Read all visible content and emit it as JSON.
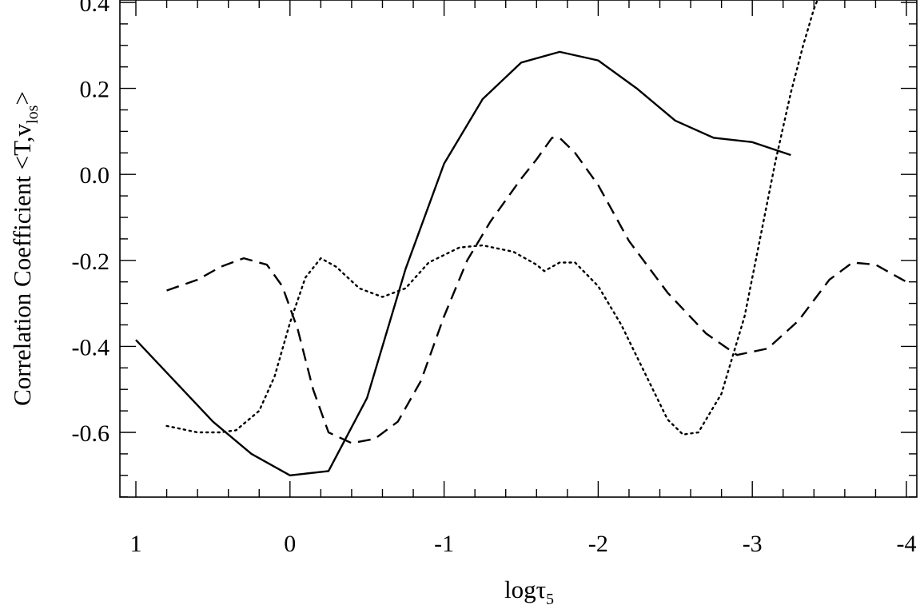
{
  "chart_data": {
    "type": "line",
    "xlabel": "logτ",
    "xlabel_subscript": "5",
    "ylabel": "Correlation Coefficient <T,v",
    "ylabel_subscript": "los",
    "ylabel_suffix": ">",
    "xlim": [
      1.0,
      -4.0
    ],
    "ylim": [
      -0.75,
      0.4
    ],
    "xticks": [
      1,
      0,
      -1,
      -2,
      -3,
      -4
    ],
    "xtick_labels": [
      "1",
      "0",
      "-1",
      "-2",
      "-3",
      "-4"
    ],
    "yticks": [
      0.4,
      0.2,
      0.0,
      -0.2,
      -0.4,
      -0.6
    ],
    "ytick_labels": [
      "0.4",
      "0.2",
      "0.0",
      "-0.2",
      "-0.4",
      "-0.6"
    ],
    "grid": false,
    "series": [
      {
        "style": "solid",
        "points": [
          [
            1.0,
            -0.385
          ],
          [
            0.75,
            -0.48
          ],
          [
            0.5,
            -0.575
          ],
          [
            0.25,
            -0.65
          ],
          [
            0.0,
            -0.7
          ],
          [
            -0.25,
            -0.69
          ],
          [
            -0.5,
            -0.52
          ],
          [
            -0.75,
            -0.22
          ],
          [
            -1.0,
            0.025
          ],
          [
            -1.25,
            0.175
          ],
          [
            -1.5,
            0.26
          ],
          [
            -1.75,
            0.285
          ],
          [
            -2.0,
            0.265
          ],
          [
            -2.25,
            0.2
          ],
          [
            -2.5,
            0.125
          ],
          [
            -2.75,
            0.085
          ],
          [
            -3.0,
            0.075
          ],
          [
            -3.25,
            0.045
          ]
        ]
      },
      {
        "style": "dashed",
        "points": [
          [
            0.8,
            -0.27
          ],
          [
            0.6,
            -0.245
          ],
          [
            0.45,
            -0.215
          ],
          [
            0.3,
            -0.195
          ],
          [
            0.15,
            -0.21
          ],
          [
            0.05,
            -0.26
          ],
          [
            -0.05,
            -0.36
          ],
          [
            -0.15,
            -0.5
          ],
          [
            -0.25,
            -0.6
          ],
          [
            -0.4,
            -0.625
          ],
          [
            -0.55,
            -0.615
          ],
          [
            -0.7,
            -0.575
          ],
          [
            -0.85,
            -0.48
          ],
          [
            -1.0,
            -0.33
          ],
          [
            -1.15,
            -0.2
          ],
          [
            -1.3,
            -0.11
          ],
          [
            -1.5,
            -0.01
          ],
          [
            -1.6,
            0.035
          ],
          [
            -1.7,
            0.085
          ],
          [
            -1.75,
            0.085
          ],
          [
            -1.85,
            0.05
          ],
          [
            -2.0,
            -0.025
          ],
          [
            -2.2,
            -0.155
          ],
          [
            -2.45,
            -0.275
          ],
          [
            -2.7,
            -0.37
          ],
          [
            -2.9,
            -0.42
          ],
          [
            -3.1,
            -0.405
          ],
          [
            -3.3,
            -0.34
          ],
          [
            -3.5,
            -0.245
          ],
          [
            -3.65,
            -0.205
          ],
          [
            -3.8,
            -0.21
          ],
          [
            -4.0,
            -0.25
          ]
        ]
      },
      {
        "style": "dotted",
        "points": [
          [
            0.8,
            -0.585
          ],
          [
            0.6,
            -0.6
          ],
          [
            0.45,
            -0.6
          ],
          [
            0.35,
            -0.595
          ],
          [
            0.2,
            -0.55
          ],
          [
            0.1,
            -0.47
          ],
          [
            0.0,
            -0.345
          ],
          [
            -0.1,
            -0.24
          ],
          [
            -0.2,
            -0.195
          ],
          [
            -0.3,
            -0.215
          ],
          [
            -0.45,
            -0.265
          ],
          [
            -0.6,
            -0.285
          ],
          [
            -0.75,
            -0.265
          ],
          [
            -0.9,
            -0.205
          ],
          [
            -1.1,
            -0.17
          ],
          [
            -1.25,
            -0.165
          ],
          [
            -1.45,
            -0.18
          ],
          [
            -1.6,
            -0.21
          ],
          [
            -1.65,
            -0.225
          ],
          [
            -1.75,
            -0.205
          ],
          [
            -1.85,
            -0.205
          ],
          [
            -2.0,
            -0.26
          ],
          [
            -2.15,
            -0.35
          ],
          [
            -2.3,
            -0.46
          ],
          [
            -2.45,
            -0.57
          ],
          [
            -2.55,
            -0.605
          ],
          [
            -2.65,
            -0.6
          ],
          [
            -2.8,
            -0.51
          ],
          [
            -2.95,
            -0.33
          ],
          [
            -3.05,
            -0.15
          ],
          [
            -3.15,
            0.03
          ],
          [
            -3.25,
            0.19
          ],
          [
            -3.33,
            0.3
          ],
          [
            -3.4,
            0.385
          ],
          [
            -3.45,
            0.43
          ]
        ]
      }
    ]
  }
}
